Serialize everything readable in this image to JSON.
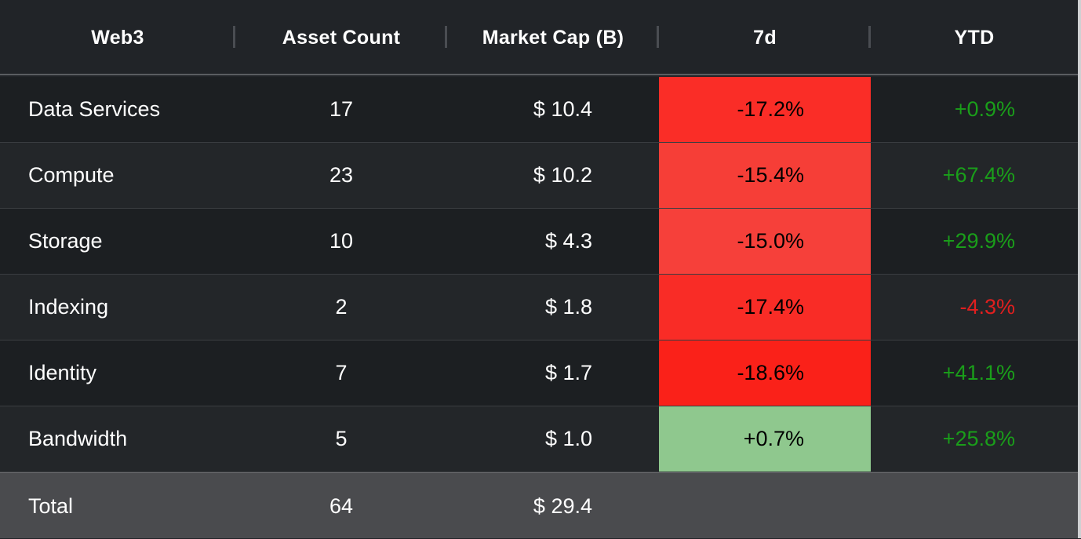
{
  "colors": {
    "neg_strong": "#fa2119",
    "neg_mid": "#f63e37",
    "neg_high": "#f92c24",
    "pos_light": "#8fc88e",
    "ytd_pos": "#1a9e1a",
    "ytd_neg": "#e01f1f"
  },
  "table": {
    "headers": [
      "Web3",
      "Asset Count",
      "Market Cap (B)",
      "7d",
      "YTD"
    ],
    "rows": [
      {
        "name": "Data Services",
        "count": "17",
        "cap": "$ 10.4",
        "d7": "-17.2%",
        "d7_color": "#fa2d27",
        "ytd": "+0.9%",
        "ytd_color": "#1a9e1a"
      },
      {
        "name": "Compute",
        "count": "23",
        "cap": "$ 10.2",
        "d7": "-15.4%",
        "d7_color": "#f63e37",
        "ytd": "+67.4%",
        "ytd_color": "#1a9e1a"
      },
      {
        "name": "Storage",
        "count": "10",
        "cap": "$ 4.3",
        "d7": "-15.0%",
        "d7_color": "#f6403a",
        "ytd": "+29.9%",
        "ytd_color": "#1a9e1a"
      },
      {
        "name": "Indexing",
        "count": "2",
        "cap": "$ 1.8",
        "d7": "-17.4%",
        "d7_color": "#f92c26",
        "ytd": "-4.3%",
        "ytd_color": "#e01f1f"
      },
      {
        "name": "Identity",
        "count": "7",
        "cap": "$ 1.7",
        "d7": "-18.6%",
        "d7_color": "#fa2119",
        "ytd": "+41.1%",
        "ytd_color": "#1a9e1a"
      },
      {
        "name": "Bandwidth",
        "count": "5",
        "cap": "$ 1.0",
        "d7": "+0.7%",
        "d7_color": "#8fc88e",
        "ytd": "+25.8%",
        "ytd_color": "#1a9e1a"
      }
    ],
    "total": {
      "name": "Total",
      "count": "64",
      "cap": "$ 29.4"
    }
  }
}
